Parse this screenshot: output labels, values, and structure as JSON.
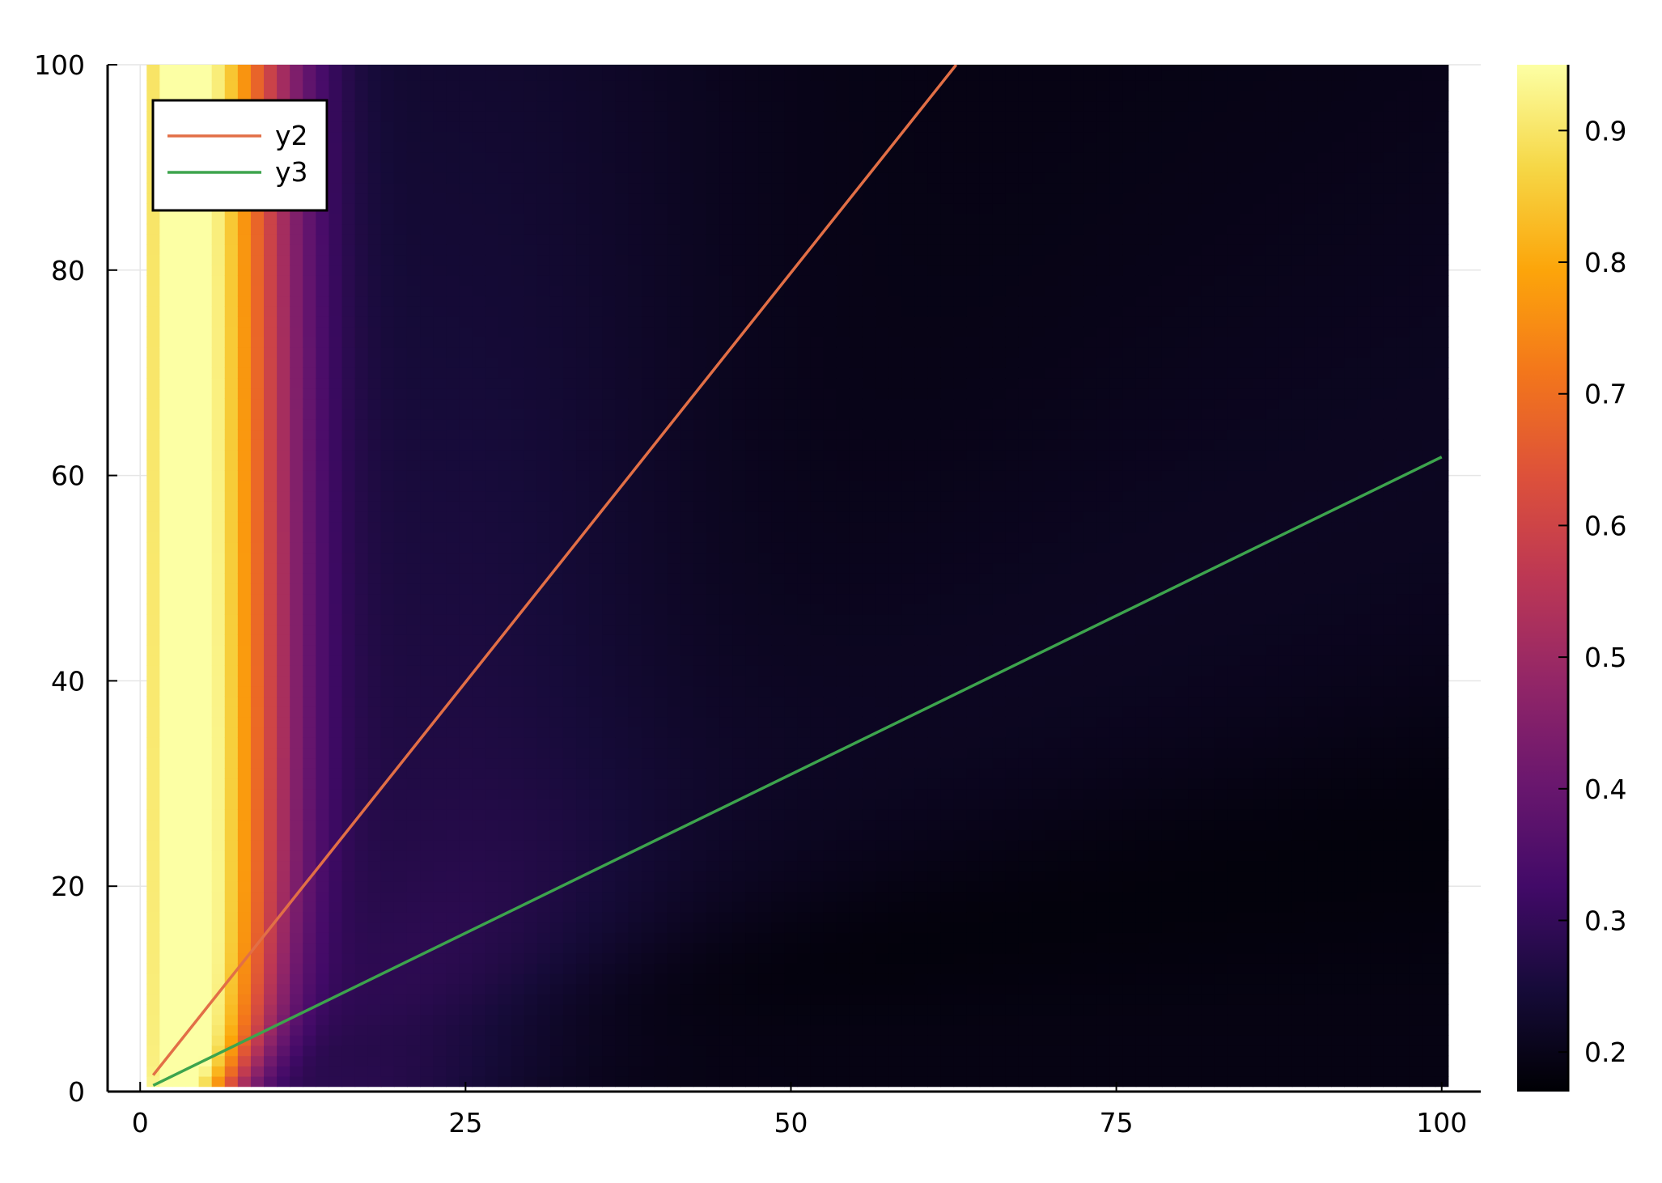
{
  "chart_data": {
    "type": "heatmap",
    "title": "",
    "xlabel": "",
    "ylabel": "",
    "xlim": [
      -2.5,
      103
    ],
    "ylim": [
      0,
      100
    ],
    "heatmap_extent": {
      "x": [
        0.5,
        100.5
      ],
      "y": [
        0.5,
        100.5
      ]
    },
    "x_ticks": [
      0,
      25,
      50,
      75,
      100
    ],
    "x_tick_labels": [
      "0",
      "25",
      "50",
      "75",
      "100"
    ],
    "y_ticks": [
      0,
      20,
      40,
      60,
      80,
      100
    ],
    "y_tick_labels": [
      "0",
      "20",
      "40",
      "60",
      "80",
      "100"
    ],
    "colorbar": {
      "colormap": "inferno",
      "range": [
        0.17,
        0.95
      ],
      "ticks": [
        0.2,
        0.3,
        0.4,
        0.5,
        0.6,
        0.7,
        0.8,
        0.9
      ],
      "tick_labels": [
        "0.2",
        "0.3",
        "0.4",
        "0.5",
        "0.6",
        "0.7",
        "0.8",
        "0.9"
      ]
    },
    "series": [
      {
        "name": "y2",
        "type": "line",
        "color": "#e26f46",
        "x": [
          1,
          62.7
        ],
        "y": [
          1.6,
          100
        ]
      },
      {
        "name": "y3",
        "type": "line",
        "color": "#3da44d",
        "x": [
          1,
          100
        ],
        "y": [
          0.6,
          61.8
        ]
      }
    ],
    "legend": {
      "position": "top-left",
      "entries": [
        "y2",
        "y3"
      ]
    },
    "grid": true
  }
}
